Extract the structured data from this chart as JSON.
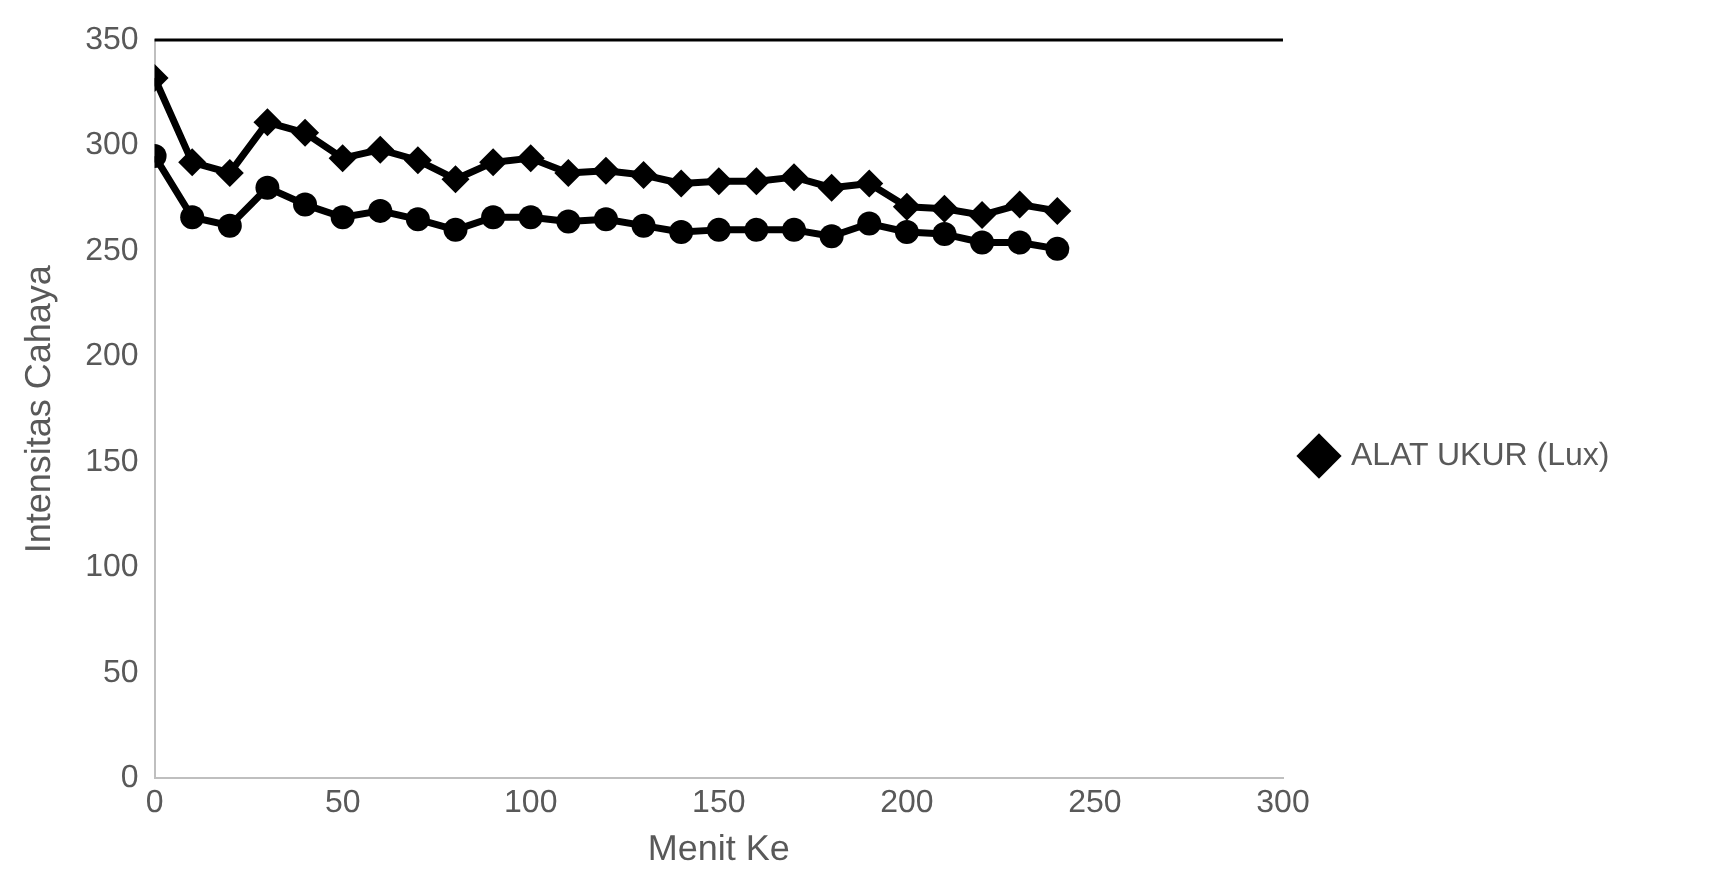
{
  "chart_data": {
    "type": "line",
    "xlabel": "Menit Ke",
    "ylabel": "Intensitas Cahaya",
    "x": [
      0,
      10,
      20,
      30,
      40,
      50,
      60,
      70,
      80,
      90,
      100,
      110,
      120,
      130,
      140,
      150,
      160,
      170,
      180,
      190,
      200,
      210,
      220,
      230,
      240
    ],
    "series": [
      {
        "color": "#000000",
        "marker": "circle",
        "values": [
          295,
          266,
          262,
          280,
          272,
          266,
          269,
          265,
          260,
          266,
          266,
          264,
          265,
          262,
          259,
          260,
          260,
          260,
          257,
          263,
          259,
          258,
          254,
          254,
          251
        ]
      },
      {
        "name": "ALAT UKUR (Lux)",
        "color": "#000000",
        "marker": "diamond",
        "values": [
          332,
          292,
          287,
          311,
          306,
          294,
          298,
          293,
          284,
          292,
          294,
          287,
          288,
          286,
          282,
          283,
          283,
          285,
          280,
          282,
          271,
          270,
          267,
          272,
          269
        ]
      }
    ],
    "xlim": [
      0,
      300
    ],
    "xticks": [
      0,
      50,
      100,
      150,
      200,
      250,
      300
    ],
    "ylim": [
      0,
      350
    ],
    "yticks": [
      0,
      50,
      100,
      150,
      200,
      250,
      300,
      350
    ],
    "grid": false,
    "legend": "right"
  }
}
